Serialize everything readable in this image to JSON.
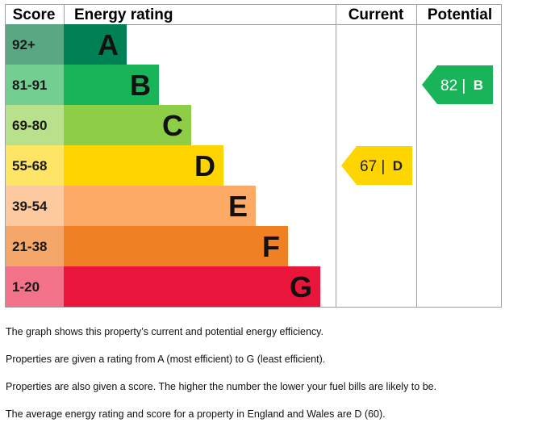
{
  "chart_data": {
    "type": "table",
    "headers": {
      "score": "Score",
      "rating": "Energy rating",
      "current": "Current",
      "potential": "Potential"
    },
    "bands": [
      {
        "letter": "A",
        "range": "92+",
        "color": "#008054",
        "score_bg": "#5aa883"
      },
      {
        "letter": "B",
        "range": "81-91",
        "color": "#19b459",
        "score_bg": "#72ce91"
      },
      {
        "letter": "C",
        "range": "69-80",
        "color": "#8dce46",
        "score_bg": "#b9e08a"
      },
      {
        "letter": "D",
        "range": "55-68",
        "color": "#ffd500",
        "score_bg": "#ffe566"
      },
      {
        "letter": "E",
        "range": "39-54",
        "color": "#fcaa65",
        "score_bg": "#fdc99e"
      },
      {
        "letter": "F",
        "range": "21-38",
        "color": "#ef8023",
        "score_bg": "#f4a768"
      },
      {
        "letter": "G",
        "range": "1-20",
        "color": "#e9153b",
        "score_bg": "#f27389"
      }
    ],
    "current": {
      "score": 67,
      "letter": "D",
      "label": "67 |",
      "color": "#ffd500",
      "text_color": "#222222"
    },
    "potential": {
      "score": 82,
      "letter": "B",
      "label": "82 |",
      "color": "#19b459",
      "text_color": "#ffffff"
    }
  },
  "notes": [
    "The graph shows this property’s current and potential energy efficiency.",
    "Properties are given a rating from A (most efficient) to G (least efficient).",
    "Properties are also given a score. The higher the number the lower your fuel bills are likely to be.",
    "The average energy rating and score for a property in England and Wales are D (60)."
  ]
}
